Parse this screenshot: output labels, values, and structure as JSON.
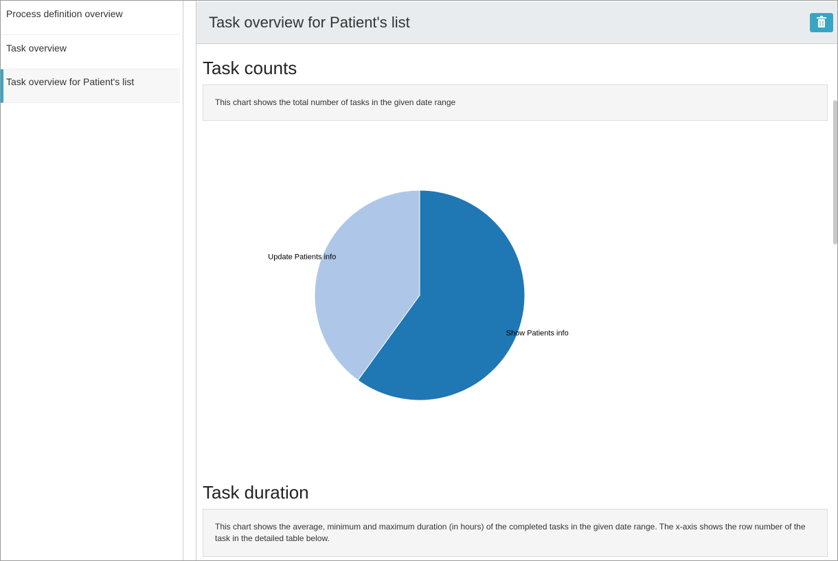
{
  "sidebar": {
    "items": [
      "Process definition overview",
      "Task overview",
      "Task overview for Patient's list"
    ]
  },
  "header": {
    "title": "Task overview for Patient's list"
  },
  "sections": [
    {
      "heading": "Task counts",
      "description": "This chart shows the total number of tasks in the given date range"
    },
    {
      "heading": "Task duration",
      "description": "This chart shows the average, minimum and maximum duration (in hours) of the completed tasks in the given date range. The x-axis shows the row number of the task in the detailed table below."
    }
  ],
  "chart_data": {
    "type": "pie",
    "categories": [
      "Show Patients info",
      "Update Patients info"
    ],
    "values": [
      60,
      40
    ],
    "colors": [
      "#1f77b4",
      "#aec7e8"
    ]
  }
}
